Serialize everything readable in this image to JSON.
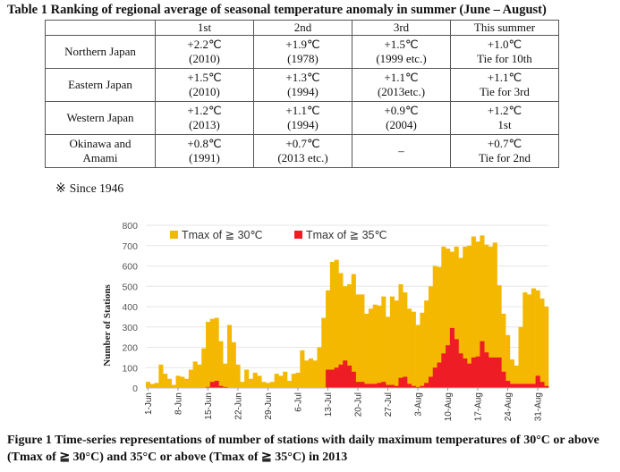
{
  "table": {
    "title": "Table 1 Ranking of regional average of seasonal temperature anomaly in summer (June – August)",
    "headers": [
      "",
      "1st",
      "2nd",
      "3rd",
      "This summer"
    ],
    "rows": [
      {
        "region": "Northern Japan",
        "c1": [
          "+2.2℃",
          "(2010)"
        ],
        "c2": [
          "+1.9℃",
          "(1978)"
        ],
        "c3": [
          "+1.5℃",
          "(1999 etc.)"
        ],
        "c4": [
          "+1.0℃",
          "Tie for 10th"
        ]
      },
      {
        "region": "Eastern Japan",
        "c1": [
          "+1.5℃",
          "(2010)"
        ],
        "c2": [
          "+1.3℃",
          "(1994)"
        ],
        "c3": [
          "+1.1℃",
          "(2013etc.)"
        ],
        "c4": [
          "+1.1℃",
          "Tie for 3rd"
        ]
      },
      {
        "region": "Western Japan",
        "c1": [
          "+1.2℃",
          "(2013)"
        ],
        "c2": [
          "+1.1℃",
          "(1994)"
        ],
        "c3": [
          "+0.9℃",
          "(2004)"
        ],
        "c4": [
          "+1.2℃",
          "1st"
        ]
      },
      {
        "region": [
          "Okinawa and",
          "Amami"
        ],
        "c1": [
          "+0.8℃",
          "(1991)"
        ],
        "c2": [
          "+0.7℃",
          "(2013 etc.)"
        ],
        "c3": [
          "–",
          ""
        ],
        "c4": [
          "+0.7℃",
          "Tie for 2nd"
        ]
      }
    ],
    "footnote_mark": "※",
    "footnote": "Since 1946"
  },
  "chart_data": {
    "type": "bar",
    "ylabel": "Number of Stations",
    "ylim": [
      0,
      800
    ],
    "yticks": [
      0,
      100,
      200,
      300,
      400,
      500,
      600,
      700,
      800
    ],
    "xticks": [
      "1-Jun",
      "8-Jun",
      "15-Jun",
      "22-Jun",
      "29-Jun",
      "6-Jul",
      "13-Jul",
      "20-Jul",
      "27-Jul",
      "3-Aug",
      "10-Aug",
      "17-Aug",
      "24-Aug",
      "31-Aug"
    ],
    "start_date": "2013-06-01",
    "legend_position": "top-left",
    "series": [
      {
        "name": "Tmax of ≧ 30℃",
        "color": "#f5b800",
        "values": [
          30,
          20,
          25,
          115,
          70,
          45,
          15,
          60,
          55,
          45,
          90,
          130,
          115,
          195,
          325,
          340,
          345,
          230,
          120,
          310,
          225,
          115,
          30,
          90,
          45,
          75,
          60,
          30,
          25,
          30,
          70,
          60,
          80,
          35,
          70,
          75,
          185,
          135,
          145,
          135,
          200,
          345,
          480,
          620,
          630,
          565,
          500,
          510,
          560,
          460,
          460,
          365,
          390,
          410,
          405,
          450,
          350,
          450,
          430,
          510,
          470,
          390,
          375,
          310,
          370,
          430,
          500,
          600,
          595,
          695,
          685,
          670,
          695,
          640,
          695,
          700,
          745,
          720,
          750,
          705,
          695,
          715,
          505,
          365,
          260,
          140,
          110,
          300,
          470,
          460,
          490,
          480,
          440,
          400
        ]
      },
      {
        "name": "Tmax of ≧ 35℃",
        "color": "#ee1c24",
        "values": [
          0,
          0,
          0,
          0,
          0,
          0,
          0,
          0,
          0,
          0,
          0,
          0,
          0,
          0,
          5,
          30,
          35,
          10,
          5,
          0,
          0,
          0,
          0,
          0,
          0,
          0,
          0,
          0,
          0,
          0,
          0,
          0,
          0,
          0,
          0,
          0,
          0,
          0,
          0,
          0,
          0,
          0,
          90,
          90,
          100,
          115,
          135,
          110,
          80,
          30,
          30,
          20,
          20,
          20,
          25,
          30,
          15,
          15,
          10,
          50,
          55,
          20,
          10,
          5,
          10,
          25,
          55,
          100,
          125,
          170,
          210,
          295,
          240,
          170,
          145,
          120,
          150,
          155,
          230,
          175,
          150,
          150,
          150,
          80,
          35,
          20,
          20,
          20,
          20,
          20,
          20,
          60,
          30,
          10
        ]
      }
    ]
  },
  "caption": "Figure 1 Time-series representations of number of stations with daily maximum temperatures of 30°C or above (Tmax of ≧ 30°C) and 35°C or above (Tmax of ≧ 35°C) in 2013"
}
